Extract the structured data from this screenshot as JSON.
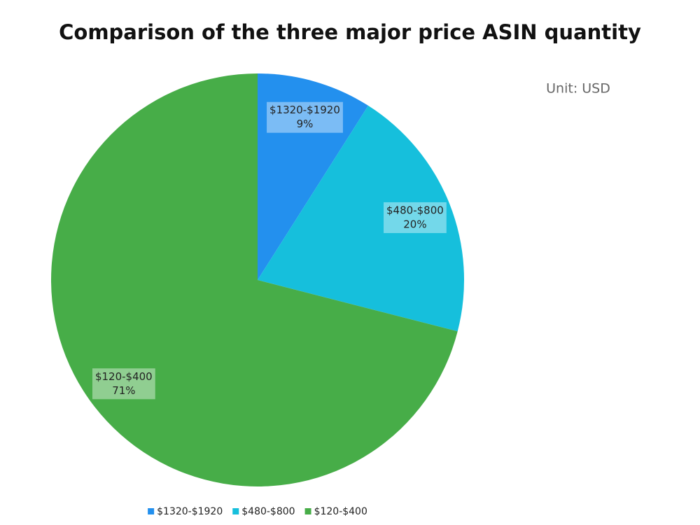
{
  "chart_data": {
    "type": "pie",
    "title": "Comparison of the three major price ASIN quantity",
    "annotation": "Unit: USD",
    "categories": [
      "$1320-$1920",
      "$480-$800",
      "$120-$400"
    ],
    "values": [
      9,
      20,
      71
    ],
    "value_labels": [
      "9%",
      "20%",
      "71%"
    ],
    "colors": [
      "#2390ee",
      "#16bfdc",
      "#47ad48"
    ],
    "legend": "bottom"
  }
}
